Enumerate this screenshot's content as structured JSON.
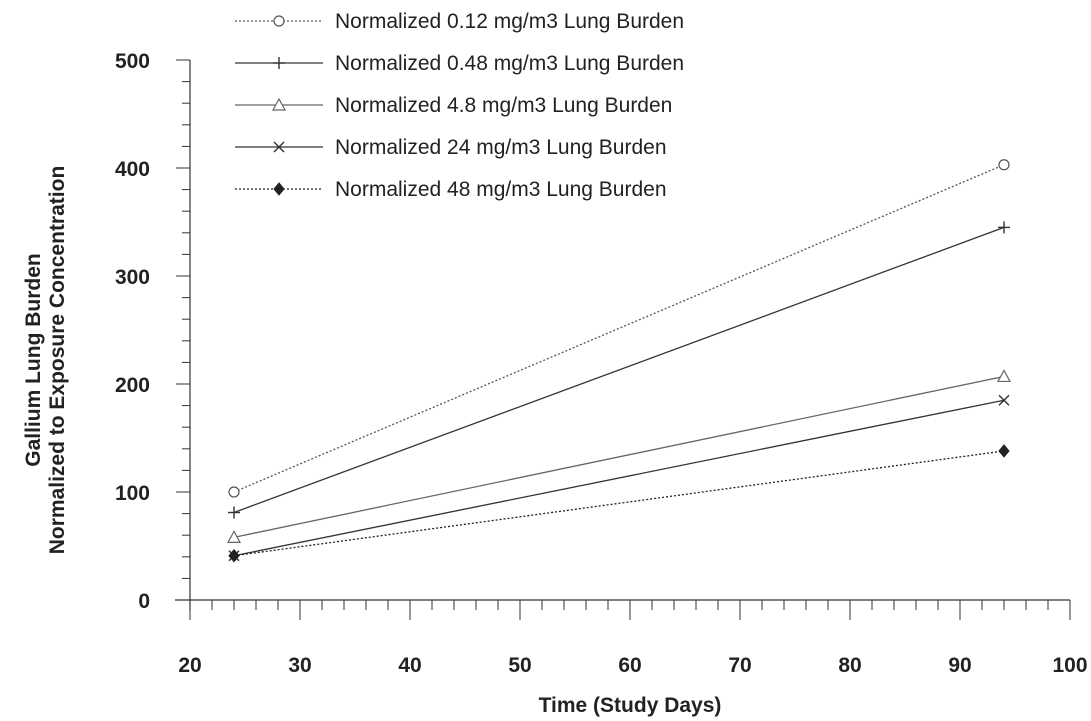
{
  "chart_data": {
    "type": "line",
    "title": "",
    "xlabel": "Time (Study Days)",
    "ylabel": [
      "Gallium Lung Burden",
      "Normalized to Exposure Concentration"
    ],
    "xlim": [
      20,
      100
    ],
    "ylim": [
      0,
      500
    ],
    "xticks": [
      "20",
      "30",
      "40",
      "50",
      "60",
      "70",
      "80",
      "90",
      "100"
    ],
    "yticks": [
      "0",
      "100",
      "200",
      "300",
      "400",
      "500"
    ],
    "grid": false,
    "legend_position": "top",
    "x": [
      24,
      94
    ],
    "series": [
      {
        "name": "Normalized 0.12 mg/m3 Lung Burden",
        "values": [
          100,
          403
        ],
        "marker": "circle",
        "dashed": true,
        "color": "#555555"
      },
      {
        "name": "Normalized 0.48 mg/m3 Lung Burden",
        "values": [
          81,
          345
        ],
        "marker": "plus",
        "dashed": false,
        "color": "#333333"
      },
      {
        "name": "Normalized 4.8 mg/m3 Lung Burden",
        "values": [
          58,
          207
        ],
        "marker": "triangle",
        "dashed": false,
        "color": "#666666"
      },
      {
        "name": "Normalized 24 mg/m3 Lung Burden",
        "values": [
          41,
          185
        ],
        "marker": "x",
        "dashed": false,
        "color": "#333333"
      },
      {
        "name": "Normalized 48 mg/m3 Lung Burden",
        "values": [
          41,
          138
        ],
        "marker": "diamond",
        "dashed": true,
        "color": "#222222"
      }
    ]
  }
}
